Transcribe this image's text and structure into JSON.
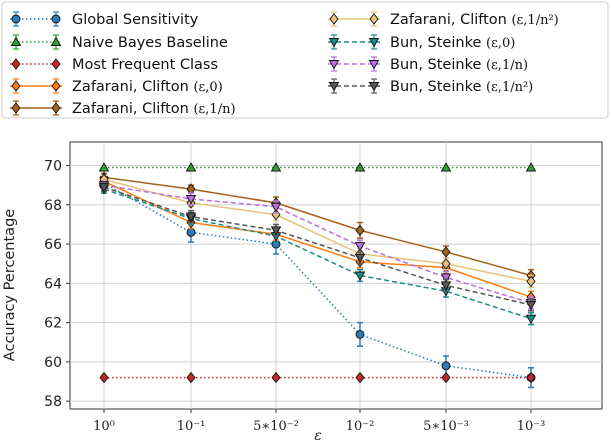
{
  "chart_data": {
    "type": "line",
    "title": "",
    "xlabel": "ε",
    "ylabel": "Accuracy Percentage",
    "x_tick_labels": [
      "10⁰",
      "10⁻¹",
      "5∗10⁻²",
      "10⁻²",
      "5∗10⁻³",
      "10⁻³"
    ],
    "y_ticks": [
      58,
      60,
      62,
      64,
      66,
      68,
      70
    ],
    "ylim": [
      57.6,
      71.2
    ],
    "grid": true,
    "legend_position": "top",
    "series": [
      {
        "name": "Global Sensitivity",
        "color": "#2b7bba",
        "dash": "1.5,2.5",
        "marker": "circle",
        "values": [
          69.1,
          66.6,
          66.0,
          61.4,
          59.8,
          59.2
        ],
        "err": [
          0.3,
          0.5,
          0.5,
          0.6,
          0.5,
          0.5
        ]
      },
      {
        "name": "Naive Bayes Baseline",
        "color": "#2ca02c",
        "dash": "1.5,2.5",
        "marker": "triangle-up",
        "values": [
          69.9,
          69.9,
          69.9,
          69.9,
          69.9,
          69.9
        ],
        "err": [
          0,
          0,
          0,
          0,
          0,
          0
        ]
      },
      {
        "name": "Most Frequent Class",
        "color": "#c62828",
        "dash": "1.5,2.5",
        "marker": "diamond",
        "values": [
          59.2,
          59.2,
          59.2,
          59.2,
          59.2,
          59.2
        ],
        "err": [
          0,
          0,
          0,
          0,
          0,
          0
        ]
      },
      {
        "name": "Zafarani, Clifton (ε,0)",
        "legend_main": "Zafarani, Clifton ",
        "legend_math": "(ε,0)",
        "color": "#ff7f0e",
        "dash": "",
        "marker": "diamond",
        "values": [
          69.2,
          67.1,
          66.5,
          65.1,
          64.8,
          63.3
        ],
        "err": [
          0.2,
          0.3,
          0.3,
          0.3,
          0.3,
          0.3
        ]
      },
      {
        "name": "Zafarani, Clifton (ε,1/n)",
        "legend_main": "Zafarani, Clifton ",
        "legend_math": "(ε,1/n)",
        "color": "#a6611a",
        "dash": "",
        "marker": "diamond",
        "values": [
          69.4,
          68.8,
          68.1,
          66.7,
          65.6,
          64.4
        ],
        "err": [
          0.2,
          0.2,
          0.3,
          0.4,
          0.3,
          0.3
        ]
      },
      {
        "name": "Zafarani, Clifton (ε,1/n²)",
        "legend_main": "Zafarani, Clifton ",
        "legend_math": "(ε,1/n²)",
        "color": "#e6c27a",
        "dash": "",
        "marker": "diamond",
        "values": [
          69.3,
          68.1,
          67.5,
          65.5,
          65.0,
          64.1
        ],
        "err": [
          0.2,
          0.2,
          0.3,
          0.3,
          0.3,
          0.3
        ]
      },
      {
        "name": "Bun, Steinke (ε,0)",
        "legend_main": "Bun, Steinke ",
        "legend_math": "(ε,0)",
        "color": "#1b8a8a",
        "dash": "5,3",
        "marker": "triangle-down",
        "values": [
          68.8,
          67.3,
          66.4,
          64.4,
          63.6,
          62.2
        ],
        "err": [
          0.2,
          0.3,
          0.3,
          0.3,
          0.3,
          0.3
        ]
      },
      {
        "name": "Bun, Steinke (ε,1/n)",
        "legend_main": "Bun, Steinke ",
        "legend_math": "(ε,1/n)",
        "color": "#b86ee0",
        "dash": "5,3",
        "marker": "triangle-down",
        "values": [
          69.0,
          68.3,
          67.9,
          65.9,
          64.3,
          63.0
        ],
        "err": [
          0.2,
          0.3,
          0.3,
          0.3,
          0.3,
          0.3
        ]
      },
      {
        "name": "Bun, Steinke (ε,1/n²)",
        "legend_main": "Bun, Steinke ",
        "legend_math": "(ε,1/n²)",
        "color": "#555555",
        "dash": "5,3",
        "marker": "triangle-down",
        "values": [
          68.9,
          67.4,
          66.7,
          65.3,
          63.9,
          62.9
        ],
        "err": [
          0.2,
          0.3,
          0.3,
          0.3,
          0.3,
          0.3
        ]
      }
    ]
  }
}
